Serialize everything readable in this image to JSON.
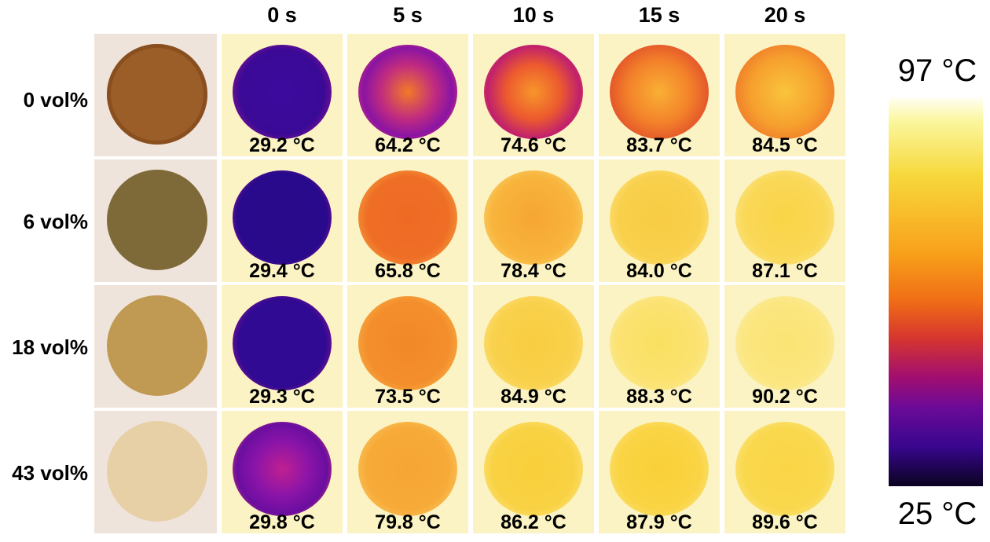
{
  "column_headers": [
    "0 s",
    "5 s",
    "10 s",
    "15 s",
    "20 s"
  ],
  "rows": [
    {
      "label": "0 vol%",
      "photo_color": "#9c5e28",
      "temps": [
        "29.2 °C",
        "64.2 °C",
        "74.6 °C",
        "83.7 °C",
        "84.5 °C"
      ]
    },
    {
      "label": "6 vol%",
      "photo_color": "#7e6a38",
      "temps": [
        "29.4 °C",
        "65.8 °C",
        "78.4 °C",
        "84.0 °C",
        "87.1 °C"
      ]
    },
    {
      "label": "18 vol%",
      "photo_color": "#c09a52",
      "temps": [
        "29.3 °C",
        "73.5 °C",
        "84.9 °C",
        "88.3 °C",
        "90.2 °C"
      ]
    },
    {
      "label": "43 vol%",
      "photo_color": "#e7cfa6",
      "temps": [
        "29.8 °C",
        "79.8 °C",
        "86.2 °C",
        "87.9 °C",
        "89.6 °C"
      ]
    }
  ],
  "color_scale": {
    "max_label": "97 °C",
    "min_label": "25 °C"
  }
}
